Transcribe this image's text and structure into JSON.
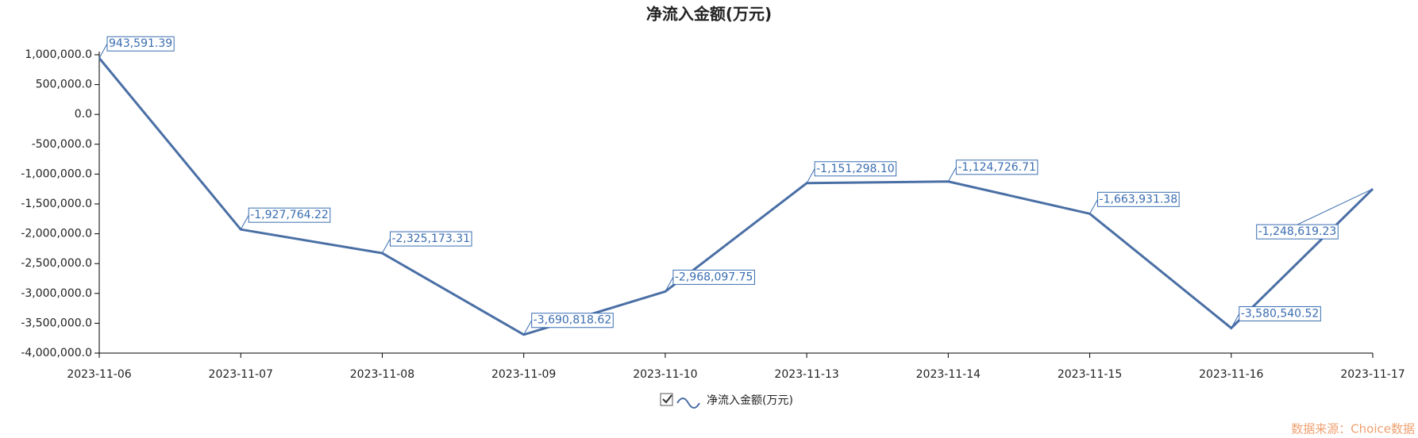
{
  "chart_data": {
    "type": "line",
    "title": "净流入金额(万元)",
    "categories": [
      "2023-11-06",
      "2023-11-07",
      "2023-11-08",
      "2023-11-09",
      "2023-11-10",
      "2023-11-13",
      "2023-11-14",
      "2023-11-15",
      "2023-11-16",
      "2023-11-17"
    ],
    "series": [
      {
        "name": "净流入金额(万元)",
        "color": "#4a6fa5",
        "values": [
          943591.39,
          -1927764.22,
          -2325173.31,
          -3690818.62,
          -2968097.75,
          -1151298.1,
          -1124726.71,
          -1663931.38,
          -3580540.52,
          -1248619.23
        ],
        "value_labels": [
          "943,591.39",
          "-1,927,764.22",
          "-2,325,173.31",
          "-3,690,818.62",
          "-2,968,097.75",
          "-1,151,298.10",
          "-1,124,726.71",
          "-1,663,931.38",
          "-3,580,540.52",
          "-1,248,619.23"
        ]
      }
    ],
    "ylim": [
      -4000000,
      1000000
    ],
    "yticks": [
      {
        "value": -4000000,
        "label": "-4,000,000.0"
      },
      {
        "value": -3500000,
        "label": "-3,500,000.0"
      },
      {
        "value": -3000000,
        "label": "-3,000,000.0"
      },
      {
        "value": -2500000,
        "label": "-2,500,000.0"
      },
      {
        "value": -2000000,
        "label": "-2,000,000.0"
      },
      {
        "value": -1500000,
        "label": "-1,500,000.0"
      },
      {
        "value": -1000000,
        "label": "-1,000,000.0"
      },
      {
        "value": -500000,
        "label": "-500,000.0"
      },
      {
        "value": 0,
        "label": "0.0"
      },
      {
        "value": 500000,
        "label": "500,000.0"
      },
      {
        "value": 1000000,
        "label": "1,000,000.0"
      }
    ],
    "grid": false,
    "source": "数据来源：Choice数据"
  }
}
